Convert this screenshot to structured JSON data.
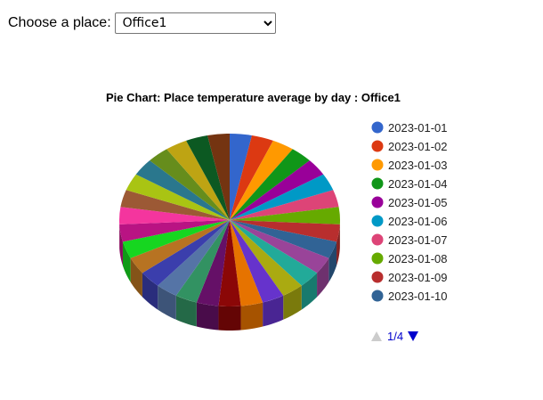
{
  "place_selector": {
    "label": "Choose a place:",
    "selected": "Office1",
    "options": [
      "Office1"
    ]
  },
  "legend": {
    "page": "1/4"
  },
  "chart_data": {
    "type": "pie",
    "title": "Pie Chart: Place temperature average by day : Office1",
    "slices": [
      {
        "label": "2023-01-01",
        "value": 1,
        "color": "#3366cc"
      },
      {
        "label": "2023-01-02",
        "value": 1,
        "color": "#dc3912"
      },
      {
        "label": "2023-01-03",
        "value": 1,
        "color": "#ff9900"
      },
      {
        "label": "2023-01-04",
        "value": 1,
        "color": "#109618"
      },
      {
        "label": "2023-01-05",
        "value": 1,
        "color": "#990099"
      },
      {
        "label": "2023-01-06",
        "value": 1,
        "color": "#0099c6"
      },
      {
        "label": "2023-01-07",
        "value": 1,
        "color": "#dd4477"
      },
      {
        "label": "2023-01-08",
        "value": 1,
        "color": "#66aa00"
      },
      {
        "label": "2023-01-09",
        "value": 1,
        "color": "#b82e2e"
      },
      {
        "label": "2023-01-10",
        "value": 1,
        "color": "#316395"
      },
      {
        "label": "",
        "value": 1,
        "color": "#994499"
      },
      {
        "label": "",
        "value": 1,
        "color": "#22aa99"
      },
      {
        "label": "",
        "value": 1,
        "color": "#aaaa11"
      },
      {
        "label": "",
        "value": 1,
        "color": "#6633cc"
      },
      {
        "label": "",
        "value": 1,
        "color": "#e67300"
      },
      {
        "label": "",
        "value": 1,
        "color": "#8b0707"
      },
      {
        "label": "",
        "value": 1,
        "color": "#651067"
      },
      {
        "label": "",
        "value": 1,
        "color": "#329262"
      },
      {
        "label": "",
        "value": 1,
        "color": "#5574a6"
      },
      {
        "label": "",
        "value": 1,
        "color": "#3b3eac"
      },
      {
        "label": "",
        "value": 1,
        "color": "#b77322"
      },
      {
        "label": "",
        "value": 1,
        "color": "#16d620"
      },
      {
        "label": "",
        "value": 1,
        "color": "#b91383"
      },
      {
        "label": "",
        "value": 1,
        "color": "#f4359e"
      },
      {
        "label": "",
        "value": 1,
        "color": "#9c5935"
      },
      {
        "label": "",
        "value": 1,
        "color": "#a9c413"
      },
      {
        "label": "",
        "value": 1,
        "color": "#2a778d"
      },
      {
        "label": "",
        "value": 1,
        "color": "#668d1c"
      },
      {
        "label": "",
        "value": 1,
        "color": "#bea413"
      },
      {
        "label": "",
        "value": 1,
        "color": "#0c5922"
      },
      {
        "label": "",
        "value": 1,
        "color": "#743411"
      }
    ],
    "legend_position": "right",
    "is_3d": true
  }
}
